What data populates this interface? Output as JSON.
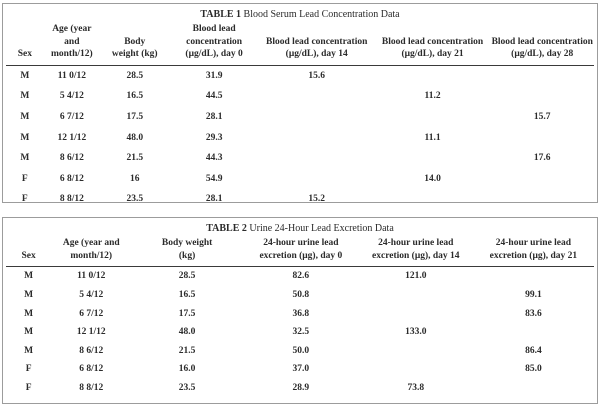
{
  "colors": {
    "box_border": "#9c9c9c",
    "header_rule": "#3a3a3a",
    "text": "#2b2b2b",
    "background": "#ffffff"
  },
  "table1": {
    "title_label": "TABLE 1",
    "title_text": "Blood Serum Lead Concentration Data",
    "columns": [
      {
        "header": [
          "Sex"
        ]
      },
      {
        "header": [
          "Age (year and",
          "month/12)"
        ]
      },
      {
        "header": [
          "Body",
          "weight (kg)"
        ]
      },
      {
        "header": [
          "Blood lead concentration",
          "(μg/dL), day 0"
        ]
      },
      {
        "header": [
          "Blood lead concentration",
          "(μg/dL), day 14"
        ]
      },
      {
        "header": [
          "Blood lead concentration",
          "(μg/dL), day 21"
        ]
      },
      {
        "header": [
          "Blood lead concentration",
          "(μg/dL), day 28"
        ]
      }
    ],
    "rows": [
      [
        "M",
        "11 0/12",
        "28.5",
        "31.9",
        "15.6",
        "",
        ""
      ],
      [
        "M",
        "5 4/12",
        "16.5",
        "44.5",
        "",
        "11.2",
        ""
      ],
      [
        "M",
        "6 7/12",
        "17.5",
        "28.1",
        "",
        "",
        "15.7"
      ],
      [
        "M",
        "12 1/12",
        "48.0",
        "29.3",
        "",
        "11.1",
        ""
      ],
      [
        "M",
        "8 6/12",
        "21.5",
        "44.3",
        "",
        "",
        "17.6"
      ],
      [
        "F",
        "6 8/12",
        "16",
        "54.9",
        "",
        "14.0",
        ""
      ],
      [
        "F",
        "8 8/12",
        "23.5",
        "28.1",
        "15.2",
        "",
        ""
      ]
    ]
  },
  "table2": {
    "title_label": "TABLE 2",
    "title_text": "Urine 24-Hour Lead Excretion Data",
    "columns": [
      {
        "header": [
          "Sex"
        ]
      },
      {
        "header": [
          "Age (year and",
          "month/12)"
        ]
      },
      {
        "header": [
          "Body weight",
          "(kg)"
        ]
      },
      {
        "header": [
          "24-hour urine lead",
          "excretion (μg), day 0"
        ]
      },
      {
        "header": [
          "24-hour urine lead",
          "excretion (μg), day 14"
        ]
      },
      {
        "header": [
          "24-hour urine lead",
          "excretion (μg), day 21"
        ]
      }
    ],
    "rows": [
      [
        "M",
        "11 0/12",
        "28.5",
        "82.6",
        "121.0",
        ""
      ],
      [
        "M",
        "5 4/12",
        "16.5",
        "50.8",
        "",
        "99.1"
      ],
      [
        "M",
        "6 7/12",
        "17.5",
        "36.8",
        "",
        "83.6"
      ],
      [
        "M",
        "12 1/12",
        "48.0",
        "32.5",
        "133.0",
        ""
      ],
      [
        "M",
        "8 6/12",
        "21.5",
        "50.0",
        "",
        "86.4"
      ],
      [
        "F",
        "6 8/12",
        "16.0",
        "37.0",
        "",
        "85.0"
      ],
      [
        "F",
        "8 8/12",
        "23.5",
        "28.9",
        "73.8",
        ""
      ]
    ]
  }
}
